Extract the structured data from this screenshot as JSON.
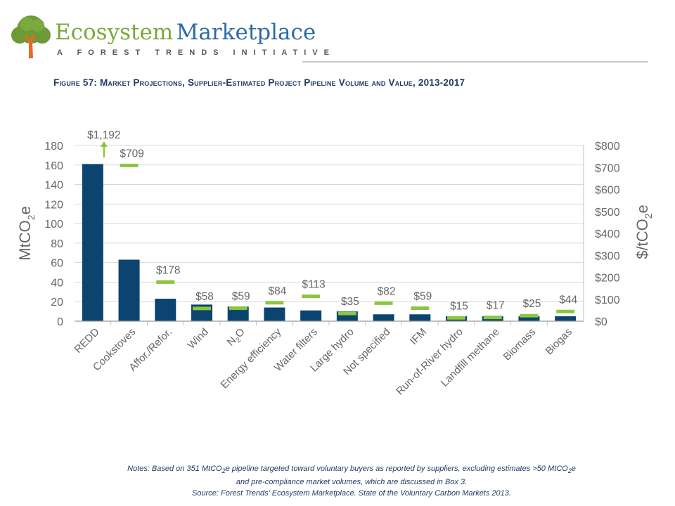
{
  "header": {
    "brand_part1": "Ecosystem",
    "brand_part2": "Marketplace",
    "tagline": "A FOREST TRENDS INITIATIVE"
  },
  "figure_title": "Figure 57: Market Projections, Supplier-Estimated Project Pipeline Volume and Value, 2013-2017",
  "colors": {
    "bar": "#0b446f",
    "value_marker": "#8cc63f",
    "axis_text": "#666666",
    "grid": "#d9d9d9"
  },
  "chart_data": {
    "type": "bar",
    "categories": [
      "REDD",
      "Cookstoves",
      "Affor./Refor.",
      "Wind",
      "N2O",
      "Energy efficiency",
      "Water filters",
      "Large hydro",
      "Not specified",
      "IFM",
      "Run-of-River hydro",
      "Landfill methane",
      "Biomass",
      "Biogas"
    ],
    "category_labels": [
      {
        "main": "REDD"
      },
      {
        "main": "Cookstoves"
      },
      {
        "main": "Affor./Refor."
      },
      {
        "main": "Wind"
      },
      {
        "main": "N",
        "sub": "2",
        "tail": "O"
      },
      {
        "main": "Energy efficiency"
      },
      {
        "main": "Water filters"
      },
      {
        "main": "Large hydro"
      },
      {
        "main": "Not specified"
      },
      {
        "main": "IFM"
      },
      {
        "main": "Run-of-River hydro"
      },
      {
        "main": "Landfill methane"
      },
      {
        "main": "Biomass"
      },
      {
        "main": "Biogas"
      }
    ],
    "volume": [
      161,
      63,
      23,
      17,
      15,
      14,
      11,
      10,
      7,
      7,
      5,
      5,
      5,
      5
    ],
    "value": [
      1192,
      709,
      178,
      58,
      59,
      84,
      113,
      35,
      82,
      59,
      15,
      17,
      25,
      44
    ],
    "value_labels": [
      "$1,192",
      "$709",
      "$178",
      "$58",
      "$59",
      "$84",
      "$113",
      "$35",
      "$82",
      "$59",
      "$15",
      "$17",
      "$25",
      "$44"
    ],
    "value_overflow_index": 0,
    "y_left": {
      "label_main": "MtCO",
      "label_sub": "2",
      "label_tail": "e",
      "min": 0,
      "max": 180,
      "ticks": [
        0,
        20,
        40,
        60,
        80,
        100,
        120,
        140,
        160,
        180
      ]
    },
    "y_right": {
      "label_main": "$/tCO",
      "label_sub": "2",
      "label_tail": "e",
      "min": 0,
      "max": 800,
      "ticks": [
        0,
        100,
        200,
        300,
        400,
        500,
        600,
        700,
        800
      ],
      "tick_labels": [
        "$0",
        "$100",
        "$200",
        "$300",
        "$400",
        "$500",
        "$600",
        "$700",
        "$800"
      ]
    },
    "grid": true
  },
  "notes": {
    "n1": "Notes: Based on 351 MtCO",
    "n1_sub": "2",
    "n2": "e pipeline targeted toward voluntary buyers as reported by suppliers, excluding estimates >50 MtCO",
    "n2_sub": "2",
    "n3": "e",
    "line2": "and pre-compliance market volumes, which are discussed in Box 3.",
    "source": "Source: Forest Trends' Ecosystem Marketplace. State of the Voluntary Carbon Markets 2013."
  }
}
